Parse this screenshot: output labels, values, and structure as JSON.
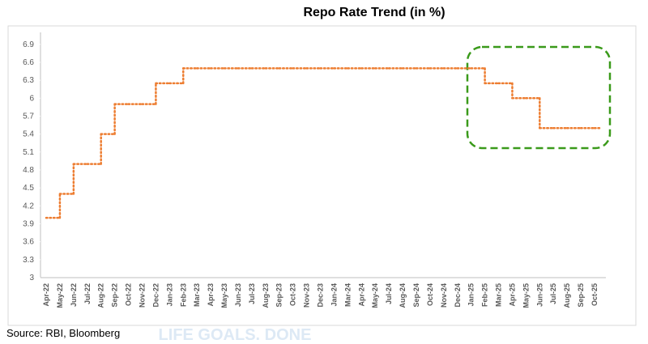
{
  "chart_data": {
    "type": "step-line",
    "title": "Repo Rate Trend (in %)",
    "source": "Source: RBI, Bloomberg",
    "watermark": "LIFE GOALS. DONE",
    "categories": [
      "Apr-22",
      "May-22",
      "Jun-22",
      "Jul-22",
      "Aug-22",
      "Sep-22",
      "Oct-22",
      "Nov-22",
      "Dec-22",
      "Jan-23",
      "Feb-23",
      "Mar-23",
      "Apr-23",
      "May-23",
      "Jun-23",
      "Jul-23",
      "Aug-23",
      "Sep-23",
      "Oct-23",
      "Nov-23",
      "Dec-23",
      "Jan-24",
      "Mar-24",
      "Apr-24",
      "May-24",
      "Jul-24",
      "Aug-24",
      "Sep-24",
      "Oct-24",
      "Nov-24",
      "Dec-24",
      "Jan-25",
      "Feb-25",
      "Mar-25",
      "Apr-25",
      "May-25",
      "Jun-25",
      "Jul-25",
      "Aug-25",
      "Sep-25",
      "Oct-25"
    ],
    "series": [
      {
        "name": "Repo Rate",
        "color": "#ed7d31",
        "values": [
          4.0,
          4.4,
          4.9,
          4.9,
          5.4,
          5.9,
          5.9,
          5.9,
          6.25,
          6.25,
          6.5,
          6.5,
          6.5,
          6.5,
          6.5,
          6.5,
          6.5,
          6.5,
          6.5,
          6.5,
          6.5,
          6.5,
          6.5,
          6.5,
          6.5,
          6.5,
          6.5,
          6.5,
          6.5,
          6.5,
          6.5,
          6.5,
          6.25,
          6.25,
          6.0,
          6.0,
          5.5,
          5.5,
          5.5,
          5.5,
          5.5
        ]
      }
    ],
    "ylim": [
      3,
      7.1
    ],
    "yticks": [
      3,
      3.3,
      3.6,
      3.9,
      4.2,
      4.5,
      4.8,
      5.1,
      5.4,
      5.7,
      6,
      6.3,
      6.6,
      6.9
    ],
    "grid": false
  }
}
